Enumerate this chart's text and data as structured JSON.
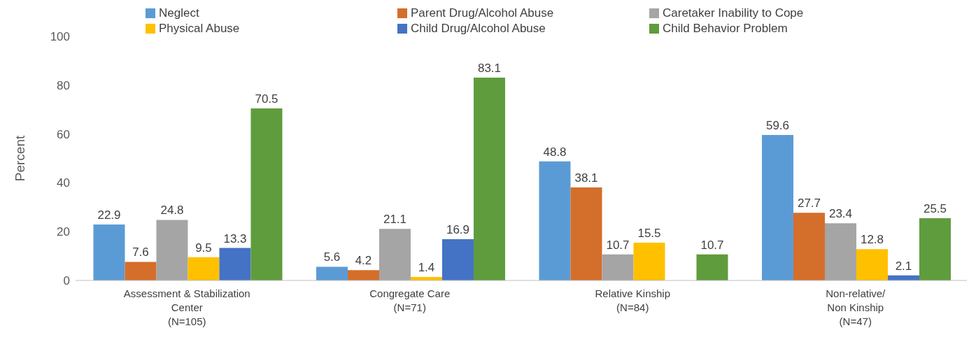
{
  "chart_data": {
    "type": "bar",
    "ylabel": "Percent",
    "categories": [
      "Assessment & Stabilization\nCenter\n(N=105)",
      "Congregate Care\n(N=71)",
      "Relative Kinship\n(N=84)",
      "Non-relative/\nNon Kinship\n(N=47)"
    ],
    "series": [
      {
        "name": "Neglect",
        "color": "#5b9bd5",
        "values": [
          22.9,
          5.6,
          48.8,
          59.6
        ]
      },
      {
        "name": "Parent Drug/Alcohol Abuse",
        "color": "#d46e2b",
        "values": [
          7.6,
          4.2,
          38.1,
          27.7
        ]
      },
      {
        "name": "Caretaker Inability to Cope",
        "color": "#a5a5a5",
        "values": [
          24.8,
          21.1,
          10.7,
          23.4
        ]
      },
      {
        "name": "Physical Abuse",
        "color": "#ffc000",
        "values": [
          9.5,
          1.4,
          15.5,
          12.8
        ]
      },
      {
        "name": "Child Drug/Alcohol Abuse",
        "color": "#4472c4",
        "values": [
          13.3,
          16.9,
          null,
          2.1
        ]
      },
      {
        "name": "Child Behavior Problem",
        "color": "#5f9c3d",
        "values": [
          70.5,
          83.1,
          10.7,
          25.5
        ]
      }
    ],
    "ylim": [
      0,
      100
    ],
    "yticks": [
      0,
      20,
      40,
      60,
      80,
      100
    ],
    "grid": false,
    "legend": "top",
    "data_labels": true
  }
}
